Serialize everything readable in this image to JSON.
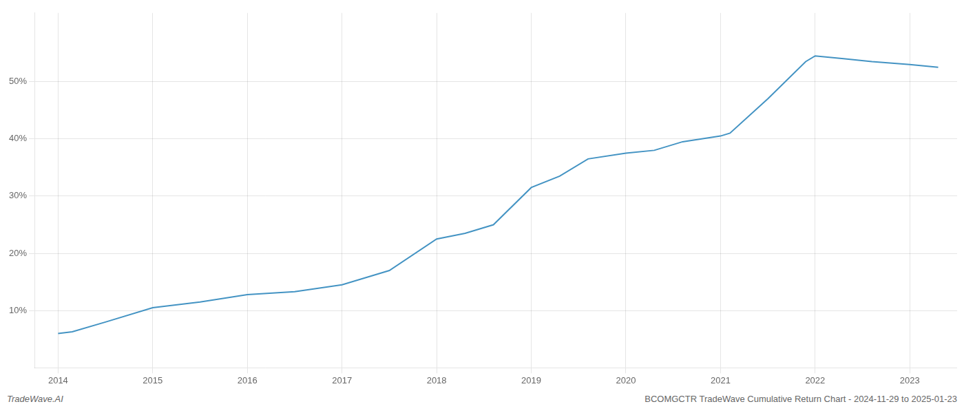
{
  "chart_data": {
    "type": "line",
    "title": "BCOMGCTR TradeWave Cumulative Return Chart - 2024-11-29 to 2025-01-23",
    "annotations": [
      "TradeWave.AI"
    ],
    "x": [
      2014.0,
      2014.15,
      2014.5,
      2015.0,
      2015.5,
      2016.0,
      2016.5,
      2017.0,
      2017.5,
      2018.0,
      2018.3,
      2018.6,
      2019.0,
      2019.3,
      2019.6,
      2020.0,
      2020.3,
      2020.6,
      2021.0,
      2021.1,
      2021.5,
      2021.9,
      2022.0,
      2022.3,
      2022.6,
      2023.0,
      2023.3
    ],
    "values": [
      6.0,
      6.3,
      8.0,
      10.5,
      11.5,
      12.8,
      13.3,
      14.5,
      17.0,
      22.5,
      23.5,
      25.0,
      31.5,
      33.5,
      36.5,
      37.5,
      38.0,
      39.5,
      40.5,
      41.0,
      47.0,
      53.5,
      54.5,
      54.0,
      53.5,
      53.0,
      52.5
    ],
    "color": "#4393c3",
    "xlim": [
      2013.75,
      2023.5
    ],
    "xticks": [
      2014,
      2015,
      2016,
      2017,
      2018,
      2019,
      2020,
      2021,
      2022,
      2023
    ],
    "ylim": [
      0,
      62
    ],
    "yticks": [
      {
        "value": 10,
        "label": "10%"
      },
      {
        "value": 20,
        "label": "20%"
      },
      {
        "value": 30,
        "label": "30%"
      },
      {
        "value": 40,
        "label": "40%"
      },
      {
        "value": 50,
        "label": "50%"
      }
    ],
    "grid": true
  }
}
